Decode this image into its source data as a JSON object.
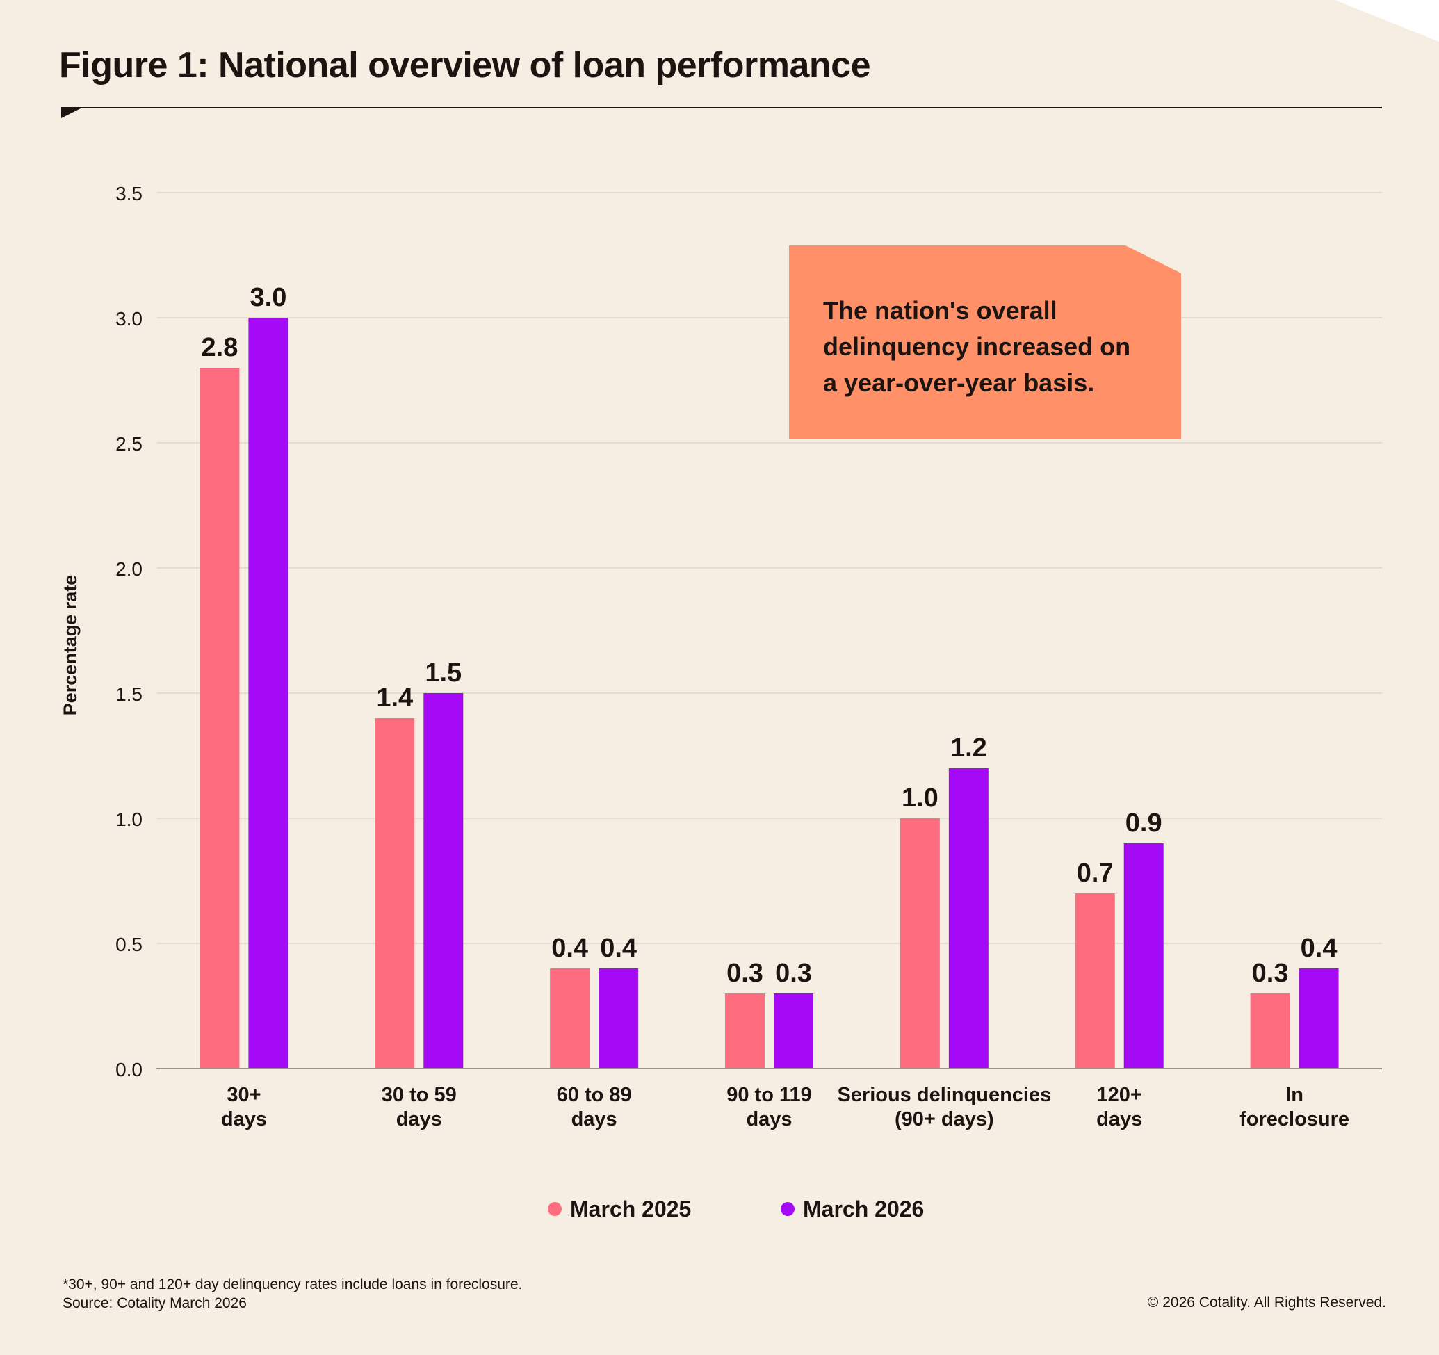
{
  "title": "Figure 1: National overview of loan performance",
  "callout": {
    "lines": [
      "The nation's overall",
      "delinquency increased on",
      "a year-over-year basis."
    ]
  },
  "colors": {
    "background": "#f6eee3",
    "march_2025": "#fe6c80",
    "march_2026": "#a50af7",
    "callout": "#ff9068",
    "grid": "#dcd5cb",
    "text": "#1c1410"
  },
  "chart_data": {
    "type": "bar",
    "ylabel": "Percentage rate",
    "ylim": [
      0,
      3.5
    ],
    "yticks": [
      "0.0",
      "0.5",
      "1.0",
      "1.5",
      "2.0",
      "2.5",
      "3.0",
      "3.5"
    ],
    "grid": true,
    "legend_position": "bottom-center",
    "categories": [
      [
        "30+",
        "days"
      ],
      [
        "30 to 59",
        "days"
      ],
      [
        "60 to 89",
        "days"
      ],
      [
        "90 to 119",
        "days"
      ],
      [
        "Serious delinquencies",
        "(90+ days)"
      ],
      [
        "120+",
        "days"
      ],
      [
        "In",
        "foreclosure"
      ]
    ],
    "series": [
      {
        "name": "March 2025",
        "values": [
          2.8,
          1.4,
          0.4,
          0.3,
          1.0,
          0.7,
          0.3
        ],
        "labels": [
          "2.8",
          "1.4",
          "0.4",
          "0.3",
          "1.0",
          "0.7",
          "0.3"
        ]
      },
      {
        "name": "March 2026",
        "values": [
          3.0,
          1.5,
          0.4,
          0.3,
          1.2,
          0.9,
          0.4
        ],
        "labels": [
          "3.0",
          "1.5",
          "0.4",
          "0.3",
          "1.2",
          "0.9",
          "0.4"
        ]
      }
    ]
  },
  "footnote": {
    "note": "*30+, 90+ and 120+ day delinquency rates include loans in foreclosure.",
    "source": "Source: Cotality March 2026"
  },
  "copyright": "© 2026 Cotality. All Rights Reserved."
}
